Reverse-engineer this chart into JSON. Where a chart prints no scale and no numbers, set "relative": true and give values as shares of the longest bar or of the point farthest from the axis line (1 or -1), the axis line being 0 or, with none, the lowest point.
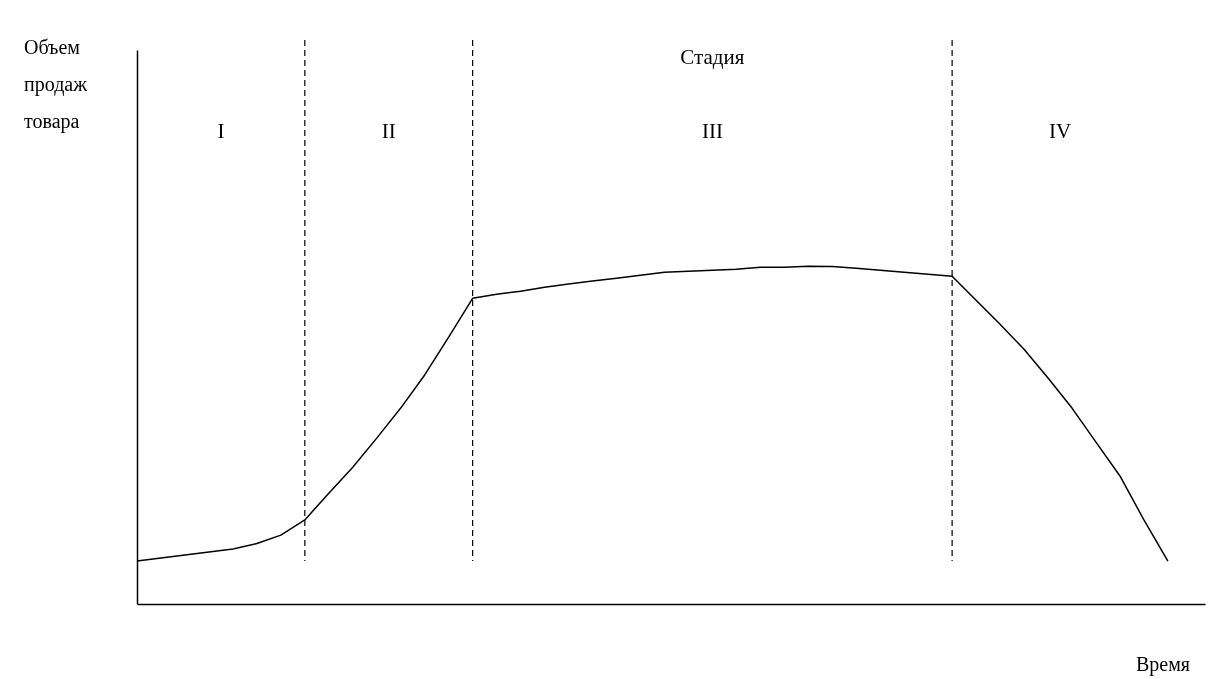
{
  "chart_data": {
    "type": "line",
    "relative": true,
    "xlabel": "Время",
    "categories": [
      null,
      null,
      null,
      null,
      null,
      null,
      null,
      null,
      null,
      null,
      null,
      null,
      null,
      null,
      null,
      null,
      null,
      null,
      null,
      null,
      null,
      null,
      null,
      null,
      null,
      null,
      null,
      null,
      null,
      null,
      null,
      null,
      null,
      null,
      null,
      null,
      null,
      null,
      null,
      null,
      null,
      null,
      null,
      null
    ],
    "series": [
      {
        "color": "#000000",
        "values": [
          0.127,
          0.136,
          0.145,
          0.154,
          0.163,
          0.179,
          0.204,
          0.249,
          0.328,
          0.405,
          0.491,
          0.58,
          0.678,
          0.79,
          0.905,
          0.917,
          0.926,
          0.938,
          0.947,
          0.956,
          0.964,
          0.973,
          0.982,
          0.985,
          0.988,
          0.991,
          0.997,
          0.997,
          1,
          0.999,
          0.994,
          0.988,
          0.982,
          0.976,
          0.97,
          0.899,
          0.828,
          0.754,
          0.669,
          0.58,
          0.479,
          0.379,
          0.249,
          0.127
        ]
      }
    ],
    "annotations": [
      "Объем продаж товара",
      "Стадия",
      "I",
      "II",
      "III",
      "IV"
    ],
    "grid": "x",
    "marker": "none",
    "line_style": "solid"
  }
}
